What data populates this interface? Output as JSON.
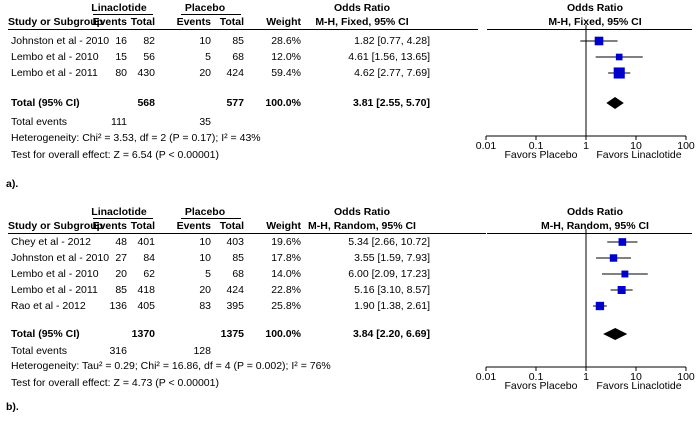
{
  "chart_data": [
    {
      "type": "forest",
      "panel_label": "a).",
      "group1": "Linaclotide",
      "group2": "Placebo",
      "headers": {
        "study": "Study or Subgroup",
        "events": "Events",
        "total": "Total",
        "weight": "Weight",
        "or_title": "Odds Ratio",
        "or_method": "M-H, Fixed, 95% CI"
      },
      "studies": [
        {
          "name": "Johnston et al - 2010",
          "e1": "16",
          "n1": "82",
          "e2": "10",
          "n2": "85",
          "weight": "28.6%",
          "ci": "1.82 [0.77, 4.28]",
          "or": 1.82,
          "lo": 0.77,
          "hi": 4.28
        },
        {
          "name": "Lembo et al - 2010",
          "e1": "15",
          "n1": "56",
          "e2": "5",
          "n2": "68",
          "weight": "12.0%",
          "ci": "4.61 [1.56, 13.65]",
          "or": 4.61,
          "lo": 1.56,
          "hi": 13.65
        },
        {
          "name": "Lembo et al - 2011",
          "e1": "80",
          "n1": "430",
          "e2": "20",
          "n2": "424",
          "weight": "59.4%",
          "ci": "4.62 [2.77, 7.69]",
          "or": 4.62,
          "lo": 2.77,
          "hi": 7.69
        }
      ],
      "total": {
        "label": "Total (95% CI)",
        "n1": "568",
        "n2": "577",
        "weight": "100.0%",
        "ci": "3.81 [2.55, 5.70]",
        "or": 3.81,
        "lo": 2.55,
        "hi": 5.7
      },
      "total_events": {
        "label": "Total events",
        "e1": "111",
        "e2": "35"
      },
      "heterogeneity": "Heterogeneity: Chi² = 3.53, df = 2 (P = 0.17); I² = 43%",
      "overall_effect": "Test for overall effect: Z = 6.54 (P < 0.00001)",
      "axis": {
        "scale": "log",
        "ticks": [
          0.01,
          0.1,
          1,
          10,
          100
        ],
        "tick_labels": [
          "0.01",
          "0.1",
          "1",
          "10",
          "100"
        ],
        "left_label": "Favors Placebo",
        "right_label": "Favors Linaclotide"
      }
    },
    {
      "type": "forest",
      "panel_label": "b).",
      "group1": "Linaclotide",
      "group2": "Placebo",
      "headers": {
        "study": "Study or Subgroup",
        "events": "Events",
        "total": "Total",
        "weight": "Weight",
        "or_title": "Odds Ratio",
        "or_method": "M-H, Random, 95% CI"
      },
      "studies": [
        {
          "name": "Chey et al - 2012",
          "e1": "48",
          "n1": "401",
          "e2": "10",
          "n2": "403",
          "weight": "19.6%",
          "ci": "5.34 [2.66, 10.72]",
          "or": 5.34,
          "lo": 2.66,
          "hi": 10.72
        },
        {
          "name": "Johnston et al - 2010",
          "e1": "27",
          "n1": "84",
          "e2": "10",
          "n2": "85",
          "weight": "17.8%",
          "ci": "3.55 [1.59, 7.93]",
          "or": 3.55,
          "lo": 1.59,
          "hi": 7.93
        },
        {
          "name": "Lembo et al - 2010",
          "e1": "20",
          "n1": "62",
          "e2": "5",
          "n2": "68",
          "weight": "14.0%",
          "ci": "6.00 [2.09, 17.23]",
          "or": 6.0,
          "lo": 2.09,
          "hi": 17.23
        },
        {
          "name": "Lembo et al - 2011",
          "e1": "85",
          "n1": "418",
          "e2": "20",
          "n2": "424",
          "weight": "22.8%",
          "ci": "5.16 [3.10, 8.57]",
          "or": 5.16,
          "lo": 3.1,
          "hi": 8.57
        },
        {
          "name": "Rao et al - 2012",
          "e1": "136",
          "n1": "405",
          "e2": "83",
          "n2": "395",
          "weight": "25.8%",
          "ci": "1.90 [1.38, 2.61]",
          "or": 1.9,
          "lo": 1.38,
          "hi": 2.61
        }
      ],
      "total": {
        "label": "Total (95% CI)",
        "n1": "1370",
        "n2": "1375",
        "weight": "100.0%",
        "ci": "3.84 [2.20, 6.69]",
        "or": 3.84,
        "lo": 2.2,
        "hi": 6.69
      },
      "total_events": {
        "label": "Total events",
        "e1": "316",
        "e2": "128"
      },
      "heterogeneity": "Heterogeneity: Tau² = 0.29; Chi² = 16.86, df = 4 (P = 0.002); I² = 76%",
      "overall_effect": "Test for overall effect: Z = 4.73 (P < 0.00001)",
      "axis": {
        "scale": "log",
        "ticks": [
          0.01,
          0.1,
          1,
          10,
          100
        ],
        "tick_labels": [
          "0.01",
          "0.1",
          "1",
          "10",
          "100"
        ],
        "left_label": "Favors Placebo",
        "right_label": "Favors Linaclotide"
      }
    }
  ],
  "colors": {
    "study_marker": "#0000cc",
    "total_diamond": "#000000",
    "lines": "#000000"
  }
}
